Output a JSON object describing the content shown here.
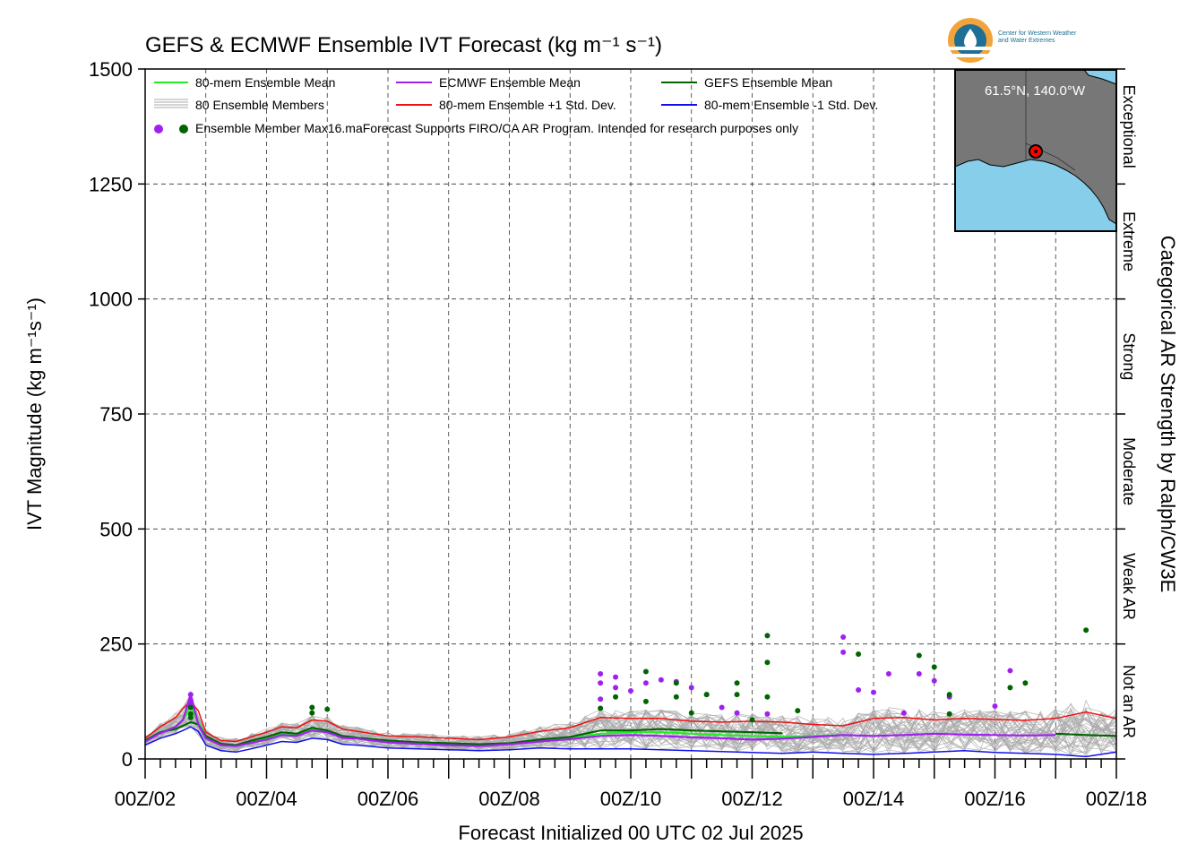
{
  "title": "GEFS & ECMWF Ensemble IVT Forecast (kg m⁻¹ s⁻¹)",
  "xlabel": "Forecast Initialized 00 UTC 02 Jul 2025",
  "ylabel": "IVT Magnitude (kg m⁻¹s⁻¹)",
  "right_label": "Categorical AR Strength by Ralph/CW3E",
  "logo": {
    "line1": "Center for Western Weather",
    "line2": "and Water Extremes"
  },
  "inset": {
    "coords": "61.5°N, 140.0°W"
  },
  "categories": [
    "Exceptional",
    "Extreme",
    "Strong",
    "Moderate",
    "Weak AR",
    "Not an AR"
  ],
  "legend": [
    {
      "label": "80-mem Ensemble Mean",
      "color": "#22ee22"
    },
    {
      "label": "ECMWF Ensemble Mean",
      "color": "#a020f0"
    },
    {
      "label": "GEFS Ensemble Mean",
      "color": "#006400"
    },
    {
      "label": "80 Ensemble Members",
      "color": "#aaaaaa"
    },
    {
      "label": "80-mem Ensemble +1 Std. Dev.",
      "color": "#ee1111"
    },
    {
      "label": "80-mem Ensemble -1 Std. Dev.",
      "color": "#1010ee"
    },
    {
      "label": "Ensemble Member Max",
      "color": "#a020f0"
    }
  ],
  "note": "16.maForecast Supports FIRO/CA AR Program. Intended for research purposes only",
  "colors": {
    "mean": "#22ee22",
    "ecmwf": "#a020f0",
    "gefs": "#006400",
    "plus": "#ee1111",
    "minus": "#1010ee",
    "members": "#aaaaaa",
    "ocean": "#87ceeb",
    "land": "#777777"
  },
  "chart_data": {
    "type": "line",
    "x_unit": "hours since 00Z/02 Jul 2025",
    "xlim": [
      0,
      384
    ],
    "ylim": [
      0,
      1500
    ],
    "yticks": [
      0,
      250,
      500,
      750,
      1000,
      1250,
      1500
    ],
    "xtick_labels": [
      "00Z/02",
      "00Z/04",
      "00Z/06",
      "00Z/08",
      "00Z/10",
      "00Z/12",
      "00Z/14",
      "00Z/16",
      "00Z/18"
    ],
    "grid": true,
    "legend_position": "top-left",
    "series": [
      {
        "name": "80-mem Ensemble Mean",
        "x": [
          0,
          6,
          12,
          15,
          18,
          21,
          24,
          30,
          36,
          42,
          48,
          54,
          60,
          66,
          72,
          78,
          84,
          96,
          108,
          120,
          132,
          144,
          156,
          168,
          180,
          192,
          204,
          216,
          228,
          240,
          252,
          264,
          276
        ],
        "y": [
          40,
          58,
          70,
          85,
          115,
          80,
          50,
          32,
          30,
          38,
          45,
          55,
          52,
          65,
          60,
          48,
          45,
          38,
          35,
          32,
          30,
          33,
          40,
          45,
          55,
          58,
          58,
          55,
          52,
          50,
          48,
          50,
          52
        ]
      },
      {
        "name": "ECMWF Ensemble Mean",
        "x": [
          0,
          6,
          12,
          15,
          18,
          21,
          24,
          30,
          36,
          42,
          48,
          54,
          60,
          66,
          72,
          78,
          84,
          96,
          108,
          120,
          132,
          144,
          156,
          168,
          180,
          192,
          204,
          216,
          228,
          240,
          252,
          264,
          276,
          288,
          300,
          312,
          324,
          336,
          348,
          360
        ],
        "y": [
          38,
          56,
          70,
          85,
          140,
          75,
          45,
          30,
          28,
          35,
          42,
          52,
          50,
          62,
          58,
          46,
          44,
          36,
          33,
          30,
          28,
          32,
          38,
          43,
          50,
          52,
          50,
          47,
          45,
          42,
          44,
          48,
          52,
          50,
          52,
          55,
          53,
          52,
          51,
          52
        ]
      },
      {
        "name": "GEFS Ensemble Mean",
        "x": [
          0,
          6,
          12,
          15,
          18,
          21,
          24,
          30,
          36,
          42,
          48,
          54,
          60,
          66,
          72,
          78,
          84,
          96,
          108,
          120,
          132,
          144,
          156,
          168,
          180,
          192,
          204,
          216,
          228,
          240,
          252,
          264,
          276,
          288,
          300,
          312,
          324,
          336,
          348,
          360,
          372,
          384
        ],
        "y": [
          40,
          58,
          65,
          72,
          80,
          75,
          50,
          33,
          30,
          40,
          48,
          58,
          55,
          68,
          62,
          50,
          46,
          40,
          36,
          34,
          32,
          34,
          42,
          48,
          62,
          62,
          65,
          62,
          60,
          58,
          56,
          null,
          null,
          null,
          null,
          null,
          null,
          null,
          null,
          55,
          52,
          50
        ]
      },
      {
        "name": "80-mem Ensemble +1 Std. Dev.",
        "x": [
          0,
          6,
          12,
          15,
          18,
          21,
          24,
          30,
          36,
          42,
          48,
          54,
          60,
          66,
          72,
          78,
          84,
          96,
          108,
          120,
          132,
          144,
          156,
          168,
          180,
          192,
          204,
          216,
          228,
          240,
          252,
          264,
          276,
          288,
          300,
          312,
          324,
          336,
          348,
          360,
          372,
          384
        ],
        "y": [
          45,
          70,
          90,
          110,
          125,
          105,
          58,
          40,
          38,
          48,
          58,
          70,
          68,
          85,
          82,
          65,
          60,
          50,
          48,
          45,
          42,
          48,
          60,
          68,
          90,
          88,
          88,
          82,
          80,
          82,
          80,
          75,
          72,
          88,
          90,
          85,
          88,
          86,
          84,
          88,
          102,
          88
        ]
      },
      {
        "name": "80-mem Ensemble -1 Std. Dev.",
        "x": [
          0,
          6,
          12,
          15,
          18,
          21,
          24,
          30,
          36,
          42,
          48,
          54,
          60,
          66,
          72,
          78,
          84,
          96,
          108,
          120,
          132,
          144,
          156,
          168,
          180,
          192,
          204,
          216,
          228,
          240,
          252,
          264,
          276,
          288,
          300,
          312,
          324,
          336,
          348,
          360,
          372,
          384
        ],
        "y": [
          30,
          45,
          55,
          62,
          70,
          60,
          30,
          18,
          15,
          22,
          30,
          38,
          36,
          45,
          42,
          32,
          30,
          24,
          22,
          20,
          18,
          20,
          24,
          22,
          22,
          22,
          20,
          18,
          16,
          14,
          12,
          15,
          12,
          10,
          12,
          15,
          18,
          14,
          12,
          10,
          5,
          15
        ]
      }
    ],
    "member_max_points": {
      "ecmwf": [
        [
          18,
          140
        ],
        [
          18,
          128
        ],
        [
          18,
          118
        ],
        [
          180,
          185
        ],
        [
          180,
          165
        ],
        [
          180,
          130
        ],
        [
          186,
          178
        ],
        [
          186,
          155
        ],
        [
          192,
          148
        ],
        [
          198,
          165
        ],
        [
          204,
          172
        ],
        [
          210,
          168
        ],
        [
          216,
          155
        ],
        [
          222,
          140
        ],
        [
          228,
          112
        ],
        [
          234,
          100
        ],
        [
          246,
          98
        ],
        [
          276,
          265
        ],
        [
          276,
          232
        ],
        [
          282,
          150
        ],
        [
          288,
          145
        ],
        [
          294,
          185
        ],
        [
          300,
          100
        ],
        [
          306,
          185
        ],
        [
          312,
          170
        ],
        [
          318,
          135
        ],
        [
          336,
          115
        ],
        [
          342,
          192
        ]
      ],
      "gefs": [
        [
          18,
          90
        ],
        [
          18,
          98
        ],
        [
          18,
          112
        ],
        [
          66,
          112
        ],
        [
          66,
          100
        ],
        [
          72,
          108
        ],
        [
          180,
          110
        ],
        [
          186,
          135
        ],
        [
          198,
          190
        ],
        [
          198,
          125
        ],
        [
          210,
          135
        ],
        [
          210,
          165
        ],
        [
          216,
          100
        ],
        [
          222,
          140
        ],
        [
          240,
          85
        ],
        [
          234,
          165
        ],
        [
          234,
          140
        ],
        [
          246,
          268
        ],
        [
          246,
          210
        ],
        [
          246,
          135
        ],
        [
          258,
          105
        ],
        [
          282,
          228
        ],
        [
          312,
          200
        ],
        [
          306,
          225
        ],
        [
          318,
          140
        ],
        [
          318,
          98
        ],
        [
          342,
          155
        ],
        [
          348,
          165
        ],
        [
          372,
          280
        ]
      ]
    }
  }
}
